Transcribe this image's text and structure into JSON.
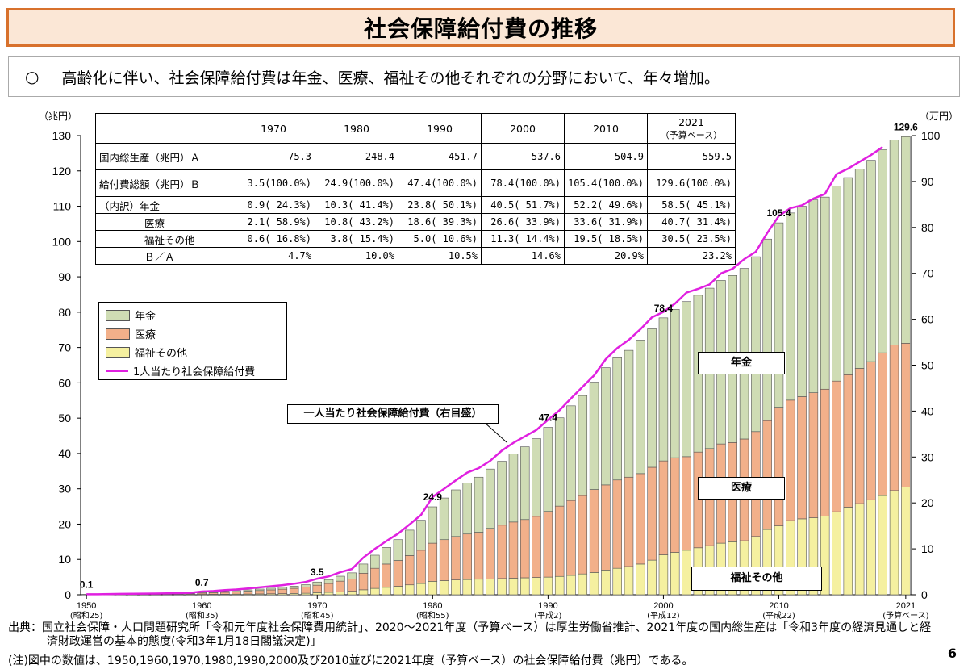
{
  "header": {
    "title": "社会保障給付費の推移"
  },
  "subtitle": {
    "bullet": "○",
    "text": "高齢化に伴い、社会保障給付費は年金、医療、福祉その他それぞれの分野において、年々増加。"
  },
  "table": {
    "columns": [
      "1970",
      "1980",
      "1990",
      "2000",
      "2010",
      "2021"
    ],
    "last_column_note": "（予算ベース）",
    "rows": [
      {
        "label": "国内総生産（兆円）Ａ",
        "values": [
          "75.3",
          "248.4",
          "451.7",
          "537.6",
          "504.9",
          "559.5"
        ]
      },
      {
        "label": "給付費総額（兆円）Ｂ",
        "values": [
          "3.5(100.0%)",
          "24.9(100.0%)",
          "47.4(100.0%)",
          "78.4(100.0%)",
          "105.4(100.0%)",
          "129.6(100.0%)"
        ]
      },
      {
        "label": "（内訳）年金",
        "values": [
          "0.9( 24.3%)",
          "10.3( 41.4%)",
          "23.8( 50.1%)",
          "40.5( 51.7%)",
          "52.2( 49.6%)",
          "58.5( 45.1%)"
        ]
      },
      {
        "label": "医療",
        "values": [
          "2.1( 58.9%)",
          "10.8( 43.2%)",
          "18.6( 39.3%)",
          "26.6( 33.9%)",
          "33.6( 31.9%)",
          "40.7( 31.4%)"
        ]
      },
      {
        "label": "福祉その他",
        "values": [
          "0.6( 16.8%)",
          "3.8( 15.4%)",
          "5.0( 10.6%)",
          "11.3( 14.4%)",
          "19.5( 18.5%)",
          "30.5( 23.5%)"
        ]
      },
      {
        "label": "Ｂ／Ａ",
        "values": [
          "4.7%",
          "10.0%",
          "10.5%",
          "14.6%",
          "20.9%",
          "23.2%"
        ]
      }
    ]
  },
  "legend": {
    "items": [
      {
        "label": "年金",
        "color": "#cfdcb4"
      },
      {
        "label": "医療",
        "color": "#f2b08a"
      },
      {
        "label": "福祉その他",
        "color": "#f5f0a0"
      },
      {
        "label": "1人当たり社会保障給付費",
        "color": "#e020e0"
      }
    ]
  },
  "callouts": {
    "per_capita": "一人当たり社会保障給付費（右目盛）",
    "nenkin": "年金",
    "iryo": "医療",
    "fukushi": "福祉その他"
  },
  "chart_data": {
    "type": "bar",
    "stacked": true,
    "x_range": [
      1950,
      2021
    ],
    "left_axis": {
      "label": "（兆円）",
      "min": 0,
      "max": 130,
      "ticks": [
        0,
        10,
        20,
        30,
        40,
        50,
        60,
        70,
        80,
        90,
        100,
        110,
        120,
        130
      ]
    },
    "right_axis": {
      "label": "（万円）",
      "min": 0,
      "max": 100,
      "ticks": [
        0,
        10,
        20,
        30,
        40,
        50,
        60,
        70,
        80,
        90,
        100
      ]
    },
    "x_tick_labels": [
      {
        "year": 1950,
        "label": "1950",
        "sub": "(昭和25)"
      },
      {
        "year": 1960,
        "label": "1960",
        "sub": "(昭和35)"
      },
      {
        "year": 1970,
        "label": "1970",
        "sub": "(昭和45)"
      },
      {
        "year": 1980,
        "label": "1980",
        "sub": "(昭和55)"
      },
      {
        "year": 1990,
        "label": "1990",
        "sub": "(平成2)"
      },
      {
        "year": 2000,
        "label": "2000",
        "sub": "(平成12)"
      },
      {
        "year": 2010,
        "label": "2010",
        "sub": "(平成22)"
      },
      {
        "year": 2021,
        "label": "2021",
        "sub": "(予算ベース)"
      }
    ],
    "years": [
      1950,
      1951,
      1952,
      1953,
      1954,
      1955,
      1956,
      1957,
      1958,
      1959,
      1960,
      1961,
      1962,
      1963,
      1964,
      1965,
      1966,
      1967,
      1968,
      1969,
      1970,
      1971,
      1972,
      1973,
      1974,
      1975,
      1976,
      1977,
      1978,
      1979,
      1980,
      1981,
      1982,
      1983,
      1984,
      1985,
      1986,
      1987,
      1988,
      1989,
      1990,
      1991,
      1992,
      1993,
      1994,
      1995,
      1996,
      1997,
      1998,
      1999,
      2000,
      2001,
      2002,
      2003,
      2004,
      2005,
      2006,
      2007,
      2008,
      2009,
      2010,
      2011,
      2012,
      2013,
      2014,
      2015,
      2016,
      2017,
      2018,
      2019,
      2020,
      2021
    ],
    "series": [
      {
        "name": "福祉その他",
        "color": "#f5f0a0",
        "values": [
          0.02,
          0.03,
          0.04,
          0.05,
          0.06,
          0.07,
          0.07,
          0.08,
          0.09,
          0.1,
          0.11,
          0.13,
          0.15,
          0.18,
          0.21,
          0.24,
          0.28,
          0.32,
          0.37,
          0.43,
          0.6,
          0.7,
          0.85,
          1.0,
          1.4,
          1.8,
          2.1,
          2.4,
          2.8,
          3.2,
          3.8,
          4.0,
          4.2,
          4.3,
          4.4,
          4.5,
          4.6,
          4.7,
          4.8,
          4.9,
          5.0,
          5.2,
          5.5,
          5.9,
          6.3,
          7.0,
          7.5,
          8.0,
          8.7,
          9.8,
          11.3,
          12.0,
          12.6,
          13.3,
          13.9,
          14.6,
          15.0,
          15.3,
          16.5,
          18.5,
          19.5,
          21.0,
          21.5,
          21.8,
          22.3,
          23.5,
          24.8,
          25.8,
          26.9,
          28.1,
          29.5,
          30.5
        ]
      },
      {
        "name": "医療",
        "color": "#f2b08a",
        "values": [
          0.06,
          0.07,
          0.08,
          0.09,
          0.1,
          0.11,
          0.12,
          0.13,
          0.15,
          0.18,
          0.37,
          0.45,
          0.55,
          0.65,
          0.8,
          0.95,
          1.1,
          1.25,
          1.45,
          1.7,
          2.1,
          2.5,
          3.0,
          3.5,
          4.7,
          5.7,
          6.6,
          7.3,
          8.3,
          9.4,
          10.8,
          11.6,
          12.3,
          12.9,
          13.3,
          14.3,
          15.1,
          15.9,
          16.5,
          17.3,
          18.6,
          19.9,
          21.2,
          22.2,
          23.5,
          24.1,
          25.0,
          25.3,
          25.6,
          26.3,
          26.6,
          26.8,
          26.5,
          27.1,
          27.5,
          28.1,
          28.1,
          28.8,
          29.7,
          30.8,
          33.6,
          34.1,
          34.6,
          35.4,
          35.9,
          37.0,
          37.5,
          38.3,
          39.1,
          40.4,
          41.2,
          40.7
        ]
      },
      {
        "name": "年金",
        "color": "#cfdcb4",
        "values": [
          0.02,
          0.03,
          0.03,
          0.04,
          0.05,
          0.06,
          0.07,
          0.08,
          0.09,
          0.1,
          0.22,
          0.25,
          0.28,
          0.32,
          0.36,
          0.41,
          0.47,
          0.53,
          0.61,
          0.72,
          0.9,
          1.1,
          1.4,
          1.7,
          2.6,
          3.7,
          4.7,
          5.9,
          7.2,
          8.5,
          10.3,
          11.8,
          13.2,
          14.4,
          15.6,
          16.8,
          18.1,
          19.3,
          20.6,
          22.0,
          23.8,
          25.0,
          26.8,
          28.3,
          30.4,
          33.2,
          34.6,
          35.9,
          37.8,
          39.2,
          40.5,
          42.0,
          43.9,
          44.4,
          45.4,
          46.3,
          47.3,
          48.3,
          49.5,
          51.4,
          52.2,
          53.0,
          53.9,
          54.6,
          54.4,
          55.2,
          55.8,
          56.4,
          57.0,
          57.5,
          58.0,
          58.5
        ]
      }
    ],
    "per_capita": {
      "name": "1人当たり社会保障給付費",
      "color": "#e020e0",
      "values": [
        0.1,
        0.1,
        0.15,
        0.2,
        0.22,
        0.25,
        0.27,
        0.3,
        0.36,
        0.42,
        0.7,
        0.8,
        1.0,
        1.15,
        1.35,
        1.6,
        1.85,
        2.1,
        2.4,
        2.8,
        3.5,
        4.0,
        4.9,
        5.6,
        8.1,
        10.0,
        11.7,
        13.3,
        15.3,
        17.4,
        21.3,
        23.1,
        24.9,
        26.6,
        27.6,
        29.2,
        31.4,
        33.1,
        34.5,
        35.9,
        38.1,
        40.2,
        42.8,
        45.3,
        47.8,
        51.3,
        53.7,
        55.5,
        57.8,
        60.4,
        61.6,
        63.4,
        65.8,
        66.6,
        67.6,
        70.0,
        71.0,
        73.1,
        74.7,
        78.8,
        82.5,
        84.2,
        84.8,
        86.3,
        87.3,
        91.6,
        92.8,
        94.3,
        95.8,
        97.5,
        null,
        null
      ]
    },
    "value_labels": [
      {
        "year": 1950,
        "value": "0.1"
      },
      {
        "year": 1960,
        "value": "0.7"
      },
      {
        "year": 1970,
        "value": "3.5"
      },
      {
        "year": 1980,
        "value": "24.9"
      },
      {
        "year": 1990,
        "value": "47.4"
      },
      {
        "year": 2000,
        "value": "78.4"
      },
      {
        "year": 2010,
        "value": "105.4"
      },
      {
        "year": 2021,
        "value": "129.6"
      }
    ]
  },
  "footer": {
    "source_line1": "出典：国立社会保障・人口問題研究所「令和元年度社会保障費用統計」、2020～2021年度（予算ベース）は厚生労働省推計、2021年度の国内総生産は「令和3年度の経済見通しと経",
    "source_line2": "済財政運営の基本的態度(令和3年1月18日閣議決定)」",
    "note": "(注)図中の数値は、1950,1960,1970,1980,1990,2000及び2010並びに2021年度（予算ベース）の社会保障給付費（兆円）である。",
    "page": "6"
  }
}
